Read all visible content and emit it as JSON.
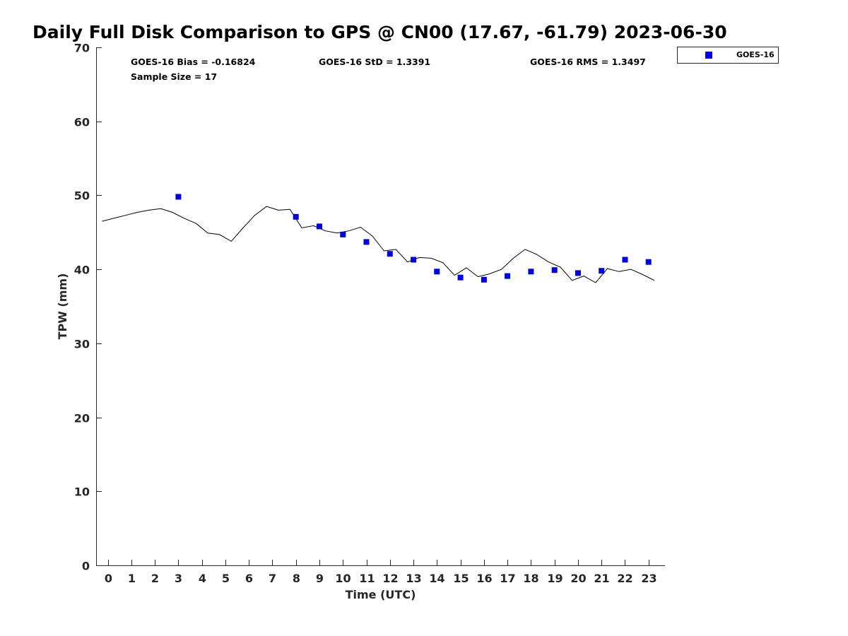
{
  "chart_data": {
    "type": "scatter",
    "title": "Daily Full Disk Comparison to GPS @ CN00 (17.67, -61.79) 2023-06-30",
    "xlabel": "Time (UTC)",
    "ylabel": "TPW (mm)",
    "xlim": [
      -0.5,
      23.7
    ],
    "ylim": [
      0,
      70
    ],
    "xticks": [
      "0",
      "1",
      "2",
      "3",
      "4",
      "5",
      "6",
      "7",
      "8",
      "9",
      "10",
      "11",
      "12",
      "13",
      "14",
      "15",
      "16",
      "17",
      "18",
      "19",
      "20",
      "21",
      "22",
      "23"
    ],
    "yticks": [
      "0",
      "10",
      "20",
      "30",
      "40",
      "50",
      "60",
      "70"
    ],
    "grid": false,
    "legend": {
      "position": "top-right",
      "entries": [
        "GOES-16"
      ]
    },
    "annotations": {
      "bias": "GOES-16 Bias = -0.16824",
      "std": "GOES-16 StD = 1.3391",
      "rms": "GOES-16 RMS = 1.3497",
      "sample": "Sample Size = 17"
    },
    "colors": {
      "goes": "#0000dd",
      "gps": "#000000",
      "axis": "#262626"
    },
    "series": [
      {
        "name": "GOES-16",
        "kind": "scatter",
        "x": [
          3,
          8,
          9,
          10,
          11,
          12,
          13,
          14,
          15,
          16,
          17,
          18,
          19,
          20,
          21,
          22,
          23
        ],
        "y": [
          49.8,
          47.1,
          45.8,
          44.7,
          43.7,
          42.1,
          41.3,
          39.7,
          38.9,
          38.6,
          39.1,
          39.7,
          39.9,
          39.5,
          39.8,
          41.3,
          41.0
        ]
      },
      {
        "name": "GPS",
        "kind": "line",
        "x": [
          -0.25,
          0.25,
          0.75,
          1.25,
          1.75,
          2.25,
          2.75,
          3.25,
          3.75,
          4.25,
          4.75,
          5.25,
          5.75,
          6.25,
          6.75,
          7.25,
          7.75,
          8.25,
          8.75,
          9.25,
          9.75,
          10.25,
          10.75,
          11.25,
          11.75,
          12.25,
          12.75,
          13.25,
          13.75,
          14.25,
          14.75,
          15.25,
          15.75,
          16.25,
          16.75,
          17.25,
          17.75,
          18.25,
          18.75,
          19.25,
          19.75,
          20.25,
          20.75,
          21.25,
          21.75,
          22.25,
          22.75,
          23.25
        ],
        "y": [
          46.5,
          46.9,
          47.3,
          47.7,
          48.0,
          48.2,
          47.7,
          46.9,
          46.2,
          44.9,
          44.7,
          43.8,
          45.6,
          47.3,
          48.5,
          48.0,
          48.1,
          45.6,
          45.9,
          45.2,
          44.9,
          45.2,
          45.7,
          44.5,
          42.5,
          42.7,
          41.0,
          41.6,
          41.5,
          40.9,
          39.2,
          40.2,
          39.0,
          39.4,
          40.0,
          41.5,
          42.7,
          42.0,
          41.0,
          40.3,
          38.5,
          39.1,
          38.2,
          40.1,
          39.7,
          40.0,
          39.3,
          38.5
        ]
      }
    ]
  }
}
